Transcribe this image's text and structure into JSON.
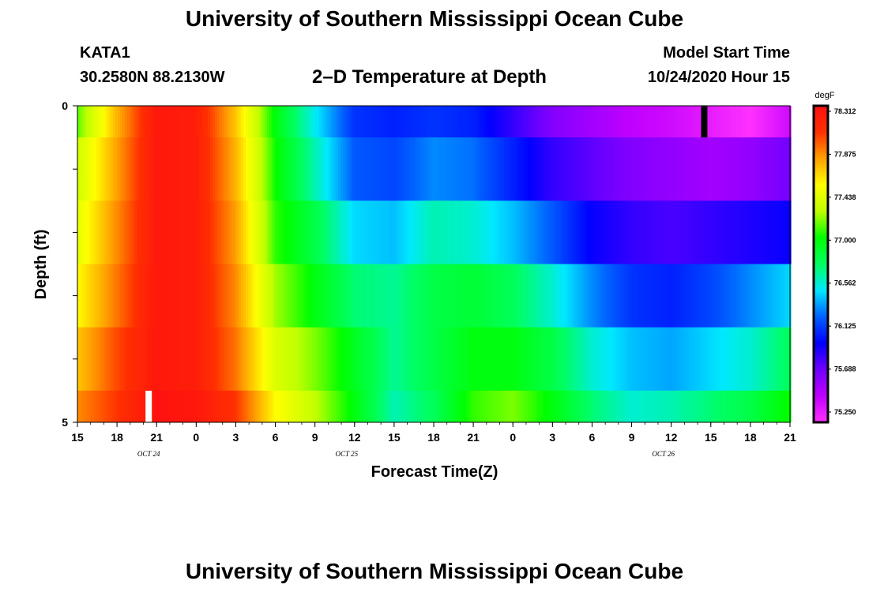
{
  "header": {
    "title_top": "University of Southern Mississippi Ocean Cube",
    "title_bottom": "University of Southern Mississippi Ocean Cube",
    "station_id": "KATA1",
    "station_coords": "30.2580N 88.2130W",
    "subtitle": "2–D Temperature at Depth",
    "model_start_label": "Model Start Time",
    "model_start_value": "10/24/2020 Hour 15"
  },
  "chart_data": {
    "type": "heatmap",
    "title": "2–D Temperature at Depth",
    "xlabel": "Forecast Time(Z)",
    "ylabel": "Depth (ft)",
    "x_tick_labels": [
      "15",
      "18",
      "21",
      "0",
      "3",
      "6",
      "9",
      "12",
      "15",
      "18",
      "21",
      "0",
      "3",
      "6",
      "9",
      "12",
      "15",
      "18",
      "21"
    ],
    "x_date_labels": [
      "OCT 24",
      "OCT 25",
      "OCT 26"
    ],
    "y_tick_labels": [
      "0",
      "5"
    ],
    "ylim": [
      0,
      5
    ],
    "colorbar": {
      "unit": "degF",
      "labels": [
        "78.312",
        "77.875",
        "77.438",
        "77.000",
        "76.562",
        "76.125",
        "75.688",
        "75.250"
      ],
      "range": [
        75.25,
        78.312
      ],
      "colors": [
        "#ff30ff",
        "#c000ff",
        "#7000ff",
        "#0000ff",
        "#0060ff",
        "#00e8ff",
        "#00ff60",
        "#00ff00",
        "#c0ff00",
        "#ffff00",
        "#ffa000",
        "#ff3000",
        "#ff1010"
      ]
    },
    "time_hours": [
      0,
      3,
      6,
      9,
      12,
      15,
      18,
      21,
      24,
      27,
      30,
      33,
      36,
      39,
      42,
      45,
      48,
      51,
      54
    ],
    "depth_layers": [
      "0-0.5",
      "0.5-1.5",
      "1.5-2.5",
      "2.5-3.5",
      "3.5-4.5",
      "4.5-5"
    ],
    "values_degF": [
      [
        77.15,
        77.75,
        78.25,
        78.2,
        77.7,
        77.0,
        76.55,
        76.15,
        76.1,
        76.15,
        76.1,
        75.9,
        75.7,
        75.6,
        75.5,
        75.45,
        75.35,
        75.25,
        75.45
      ],
      [
        77.35,
        77.8,
        78.25,
        78.2,
        77.75,
        77.05,
        76.65,
        76.25,
        76.2,
        76.35,
        76.3,
        76.1,
        75.9,
        75.8,
        75.7,
        75.65,
        75.6,
        75.65,
        75.75
      ],
      [
        77.45,
        77.85,
        78.25,
        78.2,
        77.8,
        77.1,
        76.85,
        76.5,
        76.45,
        76.65,
        76.6,
        76.45,
        76.25,
        76.0,
        75.9,
        75.85,
        75.9,
        75.95,
        76.0
      ],
      [
        77.55,
        77.9,
        78.25,
        78.2,
        77.85,
        77.25,
        77.0,
        76.75,
        76.7,
        76.85,
        76.9,
        76.8,
        76.6,
        76.35,
        76.15,
        76.1,
        76.2,
        76.35,
        76.5
      ],
      [
        77.7,
        78.0,
        78.25,
        78.2,
        77.9,
        77.4,
        77.2,
        76.95,
        76.7,
        76.85,
        77.0,
        77.0,
        76.85,
        76.6,
        76.45,
        76.4,
        76.5,
        76.6,
        76.8
      ],
      [
        77.85,
        78.05,
        78.3,
        78.25,
        78.05,
        77.55,
        77.3,
        77.0,
        76.65,
        76.8,
        77.1,
        77.2,
        77.0,
        76.75,
        76.6,
        76.65,
        76.75,
        76.85,
        77.05
      ]
    ]
  }
}
